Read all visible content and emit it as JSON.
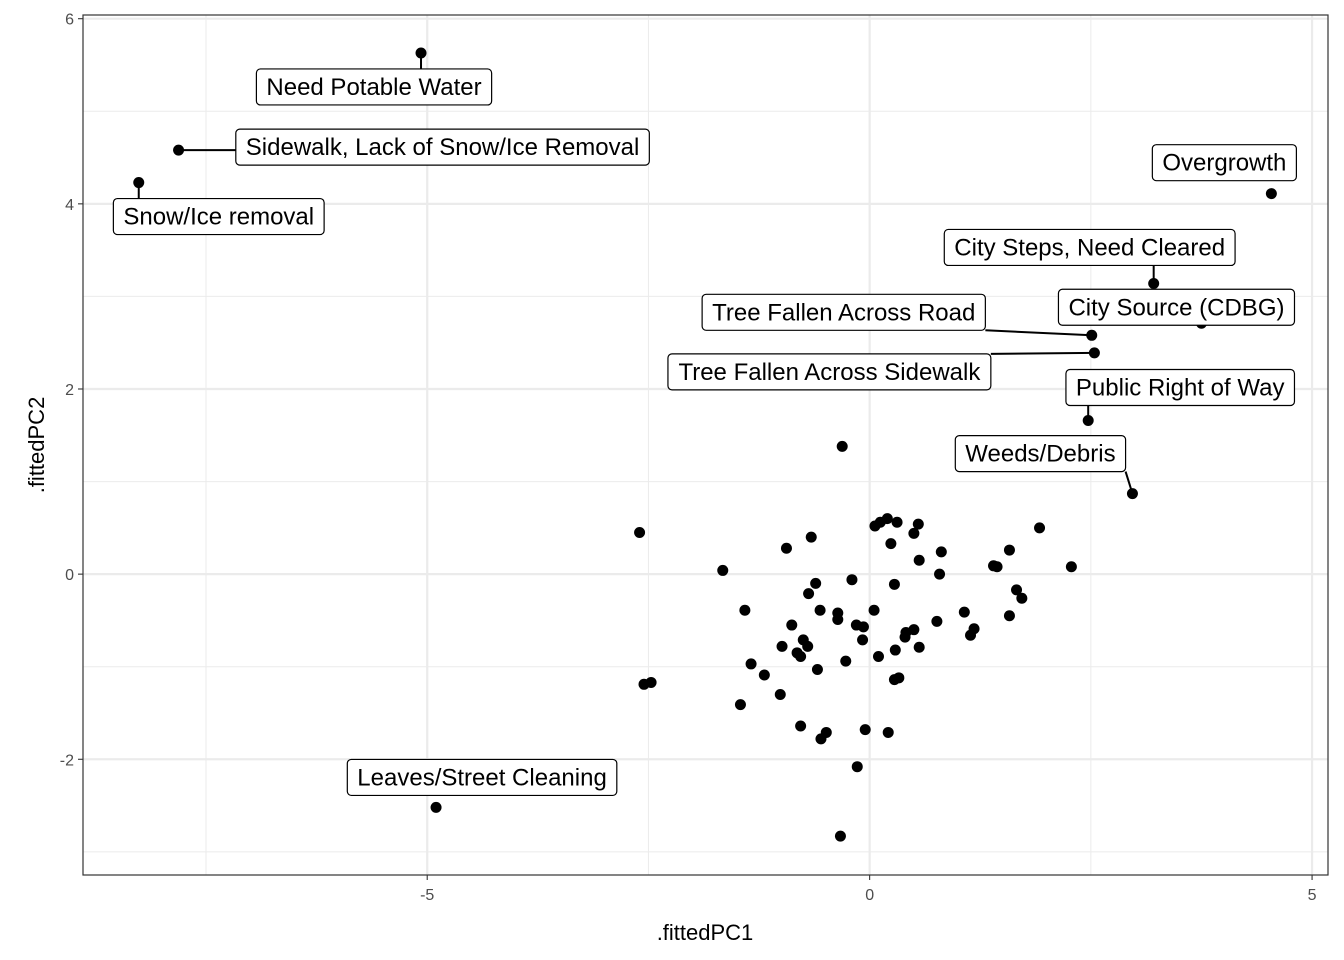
{
  "chart_data": {
    "type": "scatter",
    "title": "",
    "xlabel": ".fittedPC1",
    "ylabel": ".fittedPC2",
    "xlim": [
      -8.89,
      5.18
    ],
    "ylim": [
      -3.25,
      6.04
    ],
    "x_ticks": [
      -5,
      0,
      5
    ],
    "x_tick_labels": [
      "-5",
      "0",
      "5"
    ],
    "y_ticks": [
      -2,
      0,
      2,
      4,
      6
    ],
    "y_tick_labels": [
      "-2",
      "0",
      "2",
      "4",
      "6"
    ],
    "grid": true,
    "labeled_points": [
      {
        "label": "Need Potable Water",
        "x": -5.07,
        "y": 5.63
      },
      {
        "label": "Sidewalk, Lack of Snow/Ice Removal",
        "x": -7.81,
        "y": 4.58
      },
      {
        "label": "Snow/Ice removal",
        "x": -8.26,
        "y": 4.23
      },
      {
        "label": "Overgrowth",
        "x": 4.54,
        "y": 4.11
      },
      {
        "label": "City Steps, Need Cleared",
        "x": 3.21,
        "y": 3.14
      },
      {
        "label": "City Source (CDBG)",
        "x": 3.75,
        "y": 2.71
      },
      {
        "label": "Tree Fallen Across Road",
        "x": 2.51,
        "y": 2.58
      },
      {
        "label": "Tree Fallen Across Sidewalk",
        "x": 2.54,
        "y": 2.39
      },
      {
        "label": "Public Right of Way",
        "x": 2.47,
        "y": 1.66
      },
      {
        "label": "Weeds/Debris",
        "x": 2.97,
        "y": 0.87
      },
      {
        "label": "Leaves/Street Cleaning",
        "x": -4.9,
        "y": -2.52
      }
    ],
    "points": [
      [
        -0.31,
        1.38
      ],
      [
        -2.6,
        0.45
      ],
      [
        -1.66,
        0.04
      ],
      [
        -0.94,
        0.28
      ],
      [
        -0.66,
        0.4
      ],
      [
        -1.41,
        -0.39
      ],
      [
        -0.69,
        -0.21
      ],
      [
        -0.61,
        -0.1
      ],
      [
        -0.56,
        -0.39
      ],
      [
        -0.36,
        -0.42
      ],
      [
        -0.2,
        -0.06
      ],
      [
        0.06,
        0.52
      ],
      [
        0.12,
        0.56
      ],
      [
        0.2,
        0.6
      ],
      [
        0.31,
        0.56
      ],
      [
        0.24,
        0.33
      ],
      [
        0.5,
        0.44
      ],
      [
        0.55,
        0.54
      ],
      [
        0.05,
        -0.39
      ],
      [
        0.28,
        -0.11
      ],
      [
        0.81,
        0.24
      ],
      [
        0.56,
        0.15
      ],
      [
        0.79,
        0.0
      ],
      [
        1.58,
        0.26
      ],
      [
        1.4,
        0.09
      ],
      [
        1.44,
        0.08
      ],
      [
        1.92,
        0.5
      ],
      [
        2.28,
        0.08
      ],
      [
        1.66,
        -0.17
      ],
      [
        1.72,
        -0.26
      ],
      [
        1.58,
        -0.45
      ],
      [
        1.07,
        -0.41
      ],
      [
        1.14,
        -0.66
      ],
      [
        1.18,
        -0.59
      ],
      [
        0.76,
        -0.51
      ],
      [
        0.5,
        -0.6
      ],
      [
        0.4,
        -0.68
      ],
      [
        0.41,
        -0.63
      ],
      [
        0.56,
        -0.79
      ],
      [
        0.29,
        -0.82
      ],
      [
        0.1,
        -0.89
      ],
      [
        0.33,
        -1.12
      ],
      [
        0.28,
        -1.14
      ],
      [
        -0.07,
        -0.57
      ],
      [
        -0.08,
        -0.71
      ],
      [
        -0.15,
        -0.55
      ],
      [
        -0.27,
        -0.94
      ],
      [
        -0.59,
        -1.03
      ],
      [
        -0.36,
        -0.49
      ],
      [
        -0.75,
        -0.71
      ],
      [
        -0.82,
        -0.85
      ],
      [
        -0.78,
        -0.89
      ],
      [
        -0.7,
        -0.78
      ],
      [
        -0.88,
        -0.55
      ],
      [
        -0.99,
        -0.78
      ],
      [
        -1.34,
        -0.97
      ],
      [
        -1.19,
        -1.09
      ],
      [
        -1.01,
        -1.3
      ],
      [
        -1.46,
        -1.41
      ],
      [
        -2.55,
        -1.19
      ],
      [
        -2.47,
        -1.17
      ],
      [
        -0.78,
        -1.64
      ],
      [
        -0.49,
        -1.71
      ],
      [
        -0.55,
        -1.78
      ],
      [
        -0.05,
        -1.68
      ],
      [
        0.21,
        -1.71
      ],
      [
        -0.14,
        -2.08
      ],
      [
        -0.33,
        -2.83
      ]
    ]
  }
}
